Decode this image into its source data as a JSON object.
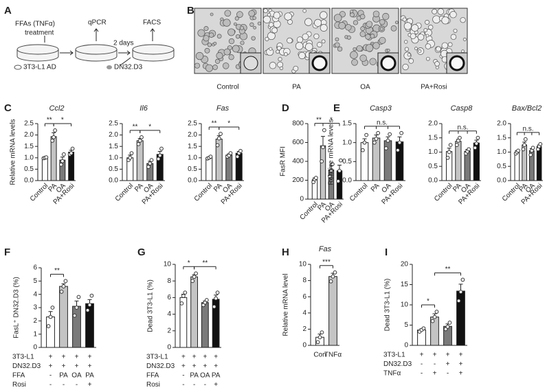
{
  "panel_labels": [
    "A",
    "B",
    "C",
    "D",
    "E",
    "F",
    "G",
    "H",
    "I"
  ],
  "schematic": {
    "treatment_line1": "FFAs (TNFα)",
    "treatment_line2": "treatment",
    "readout1": "qPCR",
    "readout2": "FACS",
    "interval": "2 days",
    "cell1": "3T3-L1 AD",
    "cell2": "DN32.D3"
  },
  "micrographs": {
    "labels": [
      "Control",
      "PA",
      "OA",
      "PA+Rosi"
    ]
  },
  "chart_data": [
    {
      "type": "bar",
      "title": "Ccl2",
      "ylabel": "Relative mRNA levels",
      "categories": [
        "Control",
        "PA",
        "OA",
        "PA+Rosi"
      ],
      "values": [
        1.0,
        1.93,
        0.9,
        1.25
      ],
      "errors": [
        0.02,
        0.17,
        0.13,
        0.08
      ],
      "points": [
        [
          0.98,
          1.0,
          1.02
        ],
        [
          1.75,
          1.9,
          2.2
        ],
        [
          0.7,
          0.85,
          1.15
        ],
        [
          1.15,
          1.2,
          1.4
        ]
      ],
      "colors": [
        "#ffffff",
        "#c4c4c4",
        "#7a7a7a",
        "#111111"
      ],
      "ylim": [
        0,
        2.5
      ],
      "yticks": [
        {
          "value": 0,
          "label": "0.0"
        },
        0.5,
        {
          "value": 1,
          "label": "1.0"
        },
        1.5,
        {
          "value": 2,
          "label": "2.0"
        },
        2.5
      ],
      "significance": [
        {
          "between": [
            0,
            1
          ],
          "label": "**"
        },
        {
          "between": [
            1,
            3
          ],
          "label": "*"
        }
      ]
    },
    {
      "type": "bar",
      "title": "Il6",
      "categories": [
        "Control",
        "PA",
        "OA",
        "PA+Rosi"
      ],
      "values": [
        1.0,
        1.75,
        0.75,
        1.15
      ],
      "errors": [
        0.12,
        0.1,
        0.1,
        0.13
      ],
      "points": [
        [
          0.9,
          1.0,
          1.2
        ],
        [
          1.6,
          1.75,
          1.9
        ],
        [
          0.6,
          0.75,
          0.9
        ],
        [
          0.95,
          1.1,
          1.4
        ]
      ],
      "colors": [
        "#ffffff",
        "#c4c4c4",
        "#7a7a7a",
        "#111111"
      ],
      "ylim": [
        0,
        2.5
      ],
      "yticks": [
        {
          "value": 0,
          "label": "0.0"
        },
        0.5,
        {
          "value": 1,
          "label": "1.0"
        },
        1.5,
        {
          "value": 2,
          "label": "2.0"
        },
        2.5
      ],
      "significance": [
        {
          "between": [
            0,
            1
          ],
          "label": "**"
        },
        {
          "between": [
            1,
            3
          ],
          "label": "*"
        }
      ]
    },
    {
      "type": "bar",
      "title": "Fas",
      "categories": [
        "Control",
        "PA",
        "OA",
        "PA+Rosi"
      ],
      "values": [
        1.0,
        1.82,
        1.12,
        1.2
      ],
      "errors": [
        0.04,
        0.15,
        0.05,
        0.08
      ],
      "points": [
        [
          0.97,
          1.0,
          1.05
        ],
        [
          1.55,
          1.85,
          2.05
        ],
        [
          1.05,
          1.1,
          1.2
        ],
        [
          1.05,
          1.2,
          1.3
        ]
      ],
      "colors": [
        "#ffffff",
        "#c4c4c4",
        "#7a7a7a",
        "#111111"
      ],
      "ylim": [
        0,
        2.5
      ],
      "yticks": [
        {
          "value": 0,
          "label": "0.0"
        },
        0.5,
        {
          "value": 1,
          "label": "1.0"
        },
        1.5,
        {
          "value": 2,
          "label": "2.0"
        },
        2.5
      ],
      "significance": [
        {
          "between": [
            0,
            1
          ],
          "label": "**"
        },
        {
          "between": [
            1,
            3
          ],
          "label": "*"
        }
      ]
    },
    {
      "type": "bar",
      "ylabel": "FasR MFI",
      "categories": [
        "Control",
        "PA",
        "OA",
        "PA+Rosi"
      ],
      "values": [
        205,
        565,
        310,
        300
      ],
      "errors": [
        20,
        100,
        45,
        60
      ],
      "points": [
        [
          180,
          210,
          225
        ],
        [
          400,
          550,
          730
        ],
        [
          240,
          300,
          370
        ],
        [
          190,
          300,
          410
        ]
      ],
      "colors": [
        "#ffffff",
        "#c4c4c4",
        "#7a7a7a",
        "#111111"
      ],
      "ylim": [
        0,
        800
      ],
      "yticks": [
        0,
        200,
        400,
        600,
        800
      ],
      "significance": [
        {
          "between": [
            0,
            1
          ],
          "label": "**"
        },
        {
          "between": [
            1,
            3
          ],
          "label": "*"
        }
      ]
    },
    {
      "type": "bar",
      "title": "Casp3",
      "ylabel": "Relative mRNA levels",
      "categories": [
        "Control",
        "PA",
        "OA",
        "PA+Rosi"
      ],
      "values": [
        1.0,
        1.12,
        1.05,
        1.02
      ],
      "errors": [
        0.1,
        0.08,
        0.1,
        0.13
      ],
      "points": [
        [
          0.8,
          1.0,
          1.2
        ],
        [
          1.0,
          1.1,
          1.25
        ],
        [
          0.85,
          1.05,
          1.22
        ],
        [
          0.8,
          1.0,
          1.25
        ]
      ],
      "colors": [
        "#ffffff",
        "#c4c4c4",
        "#7a7a7a",
        "#111111"
      ],
      "ylim": [
        0,
        1.5
      ],
      "yticks": [
        {
          "value": 0,
          "label": "0.0"
        },
        0.5,
        {
          "value": 1,
          "label": "1.0"
        },
        1.5
      ],
      "significance": [
        {
          "between": [
            0,
            1,
            2,
            3
          ],
          "label": "n.s."
        }
      ]
    },
    {
      "type": "bar",
      "title": "Casp8",
      "categories": [
        "Control",
        "PA",
        "OA",
        "PA+Rosi"
      ],
      "values": [
        1.02,
        1.38,
        1.03,
        1.32
      ],
      "errors": [
        0.12,
        0.07,
        0.06,
        0.1
      ],
      "points": [
        [
          0.8,
          1.0,
          1.25
        ],
        [
          1.25,
          1.4,
          1.5
        ],
        [
          0.95,
          1.02,
          1.1
        ],
        [
          1.15,
          1.3,
          1.5
        ]
      ],
      "colors": [
        "#ffffff",
        "#c4c4c4",
        "#7a7a7a",
        "#111111"
      ],
      "ylim": [
        0,
        2
      ],
      "yticks": [
        {
          "value": 0,
          "label": "0.0"
        },
        0.5,
        {
          "value": 1,
          "label": "1.0"
        },
        1.5,
        {
          "value": 2,
          "label": "2.0"
        }
      ],
      "significance": [
        {
          "between": [
            0,
            1,
            2,
            3
          ],
          "label": "n.s."
        }
      ]
    },
    {
      "type": "bar",
      "title": "Bax/Bcl2",
      "categories": [
        "Control",
        "PA",
        "OA",
        "PA+Rosi"
      ],
      "values": [
        1.0,
        1.25,
        1.05,
        1.2
      ],
      "errors": [
        0.05,
        0.1,
        0.07,
        0.05
      ],
      "points": [
        [
          0.95,
          1.0,
          1.05
        ],
        [
          1.1,
          1.25,
          1.45
        ],
        [
          0.9,
          1.05,
          1.15
        ],
        [
          1.1,
          1.2,
          1.28
        ]
      ],
      "colors": [
        "#ffffff",
        "#c4c4c4",
        "#7a7a7a",
        "#111111"
      ],
      "ylim": [
        0,
        2
      ],
      "yticks": [
        {
          "value": 0,
          "label": "0.0"
        },
        0.5,
        {
          "value": 1,
          "label": "1.0"
        },
        1.5,
        {
          "value": 2,
          "label": "2.0"
        }
      ],
      "significance": [
        {
          "between": [
            0,
            1,
            2,
            3
          ],
          "label": "n.s."
        }
      ]
    },
    {
      "type": "bar",
      "ylabel": "FasL⁺ DN32.D3 (%)",
      "values": [
        2.3,
        4.6,
        3.1,
        3.3
      ],
      "errors": [
        0.4,
        0.2,
        0.4,
        0.3
      ],
      "points": [
        [
          1.6,
          2.3,
          3.0
        ],
        [
          4.2,
          4.6,
          5.0
        ],
        [
          2.4,
          3.0,
          3.8
        ],
        [
          2.8,
          3.2,
          3.9
        ]
      ],
      "colors": [
        "#ffffff",
        "#c4c4c4",
        "#7a7a7a",
        "#111111"
      ],
      "ylim": [
        0,
        6
      ],
      "yticks": [
        0,
        1,
        2,
        3,
        4,
        5,
        6
      ],
      "significance": [
        {
          "between": [
            0,
            1
          ],
          "label": "**"
        }
      ],
      "conditions": [
        {
          "label": "3T3-L1",
          "marks": [
            "+",
            "+",
            "+",
            "+"
          ]
        },
        {
          "label": "DN32.D3",
          "marks": [
            "+",
            "+",
            "+",
            "+"
          ]
        },
        {
          "label": "FFA",
          "marks": [
            "-",
            "PA",
            "OA",
            "PA"
          ]
        },
        {
          "label": "Rosi",
          "marks": [
            "-",
            "-",
            "-",
            "+"
          ]
        }
      ]
    },
    {
      "type": "bar",
      "ylabel": "Dead 3T3-L1 (%)",
      "values": [
        6.0,
        8.5,
        5.4,
        5.8
      ],
      "errors": [
        0.4,
        0.25,
        0.2,
        0.5
      ],
      "points": [
        [
          5.3,
          6.2,
          6.6
        ],
        [
          8.0,
          8.5,
          8.9
        ],
        [
          5.1,
          5.4,
          5.7
        ],
        [
          4.9,
          5.9,
          6.6
        ]
      ],
      "colors": [
        "#ffffff",
        "#c4c4c4",
        "#7a7a7a",
        "#111111"
      ],
      "ylim": [
        0,
        10
      ],
      "yticks": [
        0,
        2,
        4,
        6,
        8,
        10
      ],
      "significance": [
        {
          "between": [
            0,
            1
          ],
          "label": "*"
        },
        {
          "between": [
            1,
            3
          ],
          "label": "**"
        }
      ],
      "conditions": [
        {
          "label": "3T3-L1",
          "marks": [
            "+",
            "+",
            "+",
            "+"
          ]
        },
        {
          "label": "DN32.D3",
          "marks": [
            "+",
            "+",
            "+",
            "+"
          ]
        },
        {
          "label": "FFA",
          "marks": [
            "-",
            "PA",
            "OA",
            "PA"
          ]
        },
        {
          "label": "Rosi",
          "marks": [
            "-",
            "-",
            "-",
            "+"
          ]
        }
      ]
    },
    {
      "type": "bar",
      "title": "Fas",
      "ylabel": "Relative mRNA level",
      "categories": [
        "Con",
        "TNFα"
      ],
      "values": [
        1.0,
        8.5
      ],
      "errors": [
        0.4,
        0.4
      ],
      "points": [
        [
          0.4,
          1.0,
          1.6
        ],
        [
          7.9,
          8.5,
          9.0
        ]
      ],
      "colors": [
        "#ffffff",
        "#c4c4c4"
      ],
      "ylim": [
        0,
        10
      ],
      "yticks": [
        0,
        2,
        4,
        6,
        8,
        10
      ],
      "significance": [
        {
          "between": [
            0,
            1
          ],
          "label": "***"
        }
      ]
    },
    {
      "type": "bar",
      "ylabel": "Dead 3T3-L1 (%)",
      "values": [
        3.8,
        7.0,
        4.7,
        13.4
      ],
      "errors": [
        0.3,
        0.8,
        0.6,
        1.7
      ],
      "points": [
        [
          3.4,
          3.8,
          4.2
        ],
        [
          6.0,
          7.0,
          8.3
        ],
        [
          4.0,
          4.6,
          5.6
        ],
        [
          11,
          13.2,
          16.2
        ]
      ],
      "colors": [
        "#ffffff",
        "#c4c4c4",
        "#7a7a7a",
        "#111111"
      ],
      "ylim": [
        0,
        20
      ],
      "yticks": [
        0,
        5,
        10,
        15,
        20
      ],
      "significance": [
        {
          "between": [
            0,
            1
          ],
          "label": "*"
        },
        {
          "between": [
            1,
            3
          ],
          "label": "**"
        }
      ],
      "conditions": [
        {
          "label": "3T3-L1",
          "marks": [
            "+",
            "+",
            "+",
            "+"
          ]
        },
        {
          "label": "DN32.D3",
          "marks": [
            "-",
            "-",
            "+",
            "+"
          ]
        },
        {
          "label": "TNFα",
          "marks": [
            "-",
            "+",
            "-",
            "+"
          ]
        }
      ]
    }
  ]
}
